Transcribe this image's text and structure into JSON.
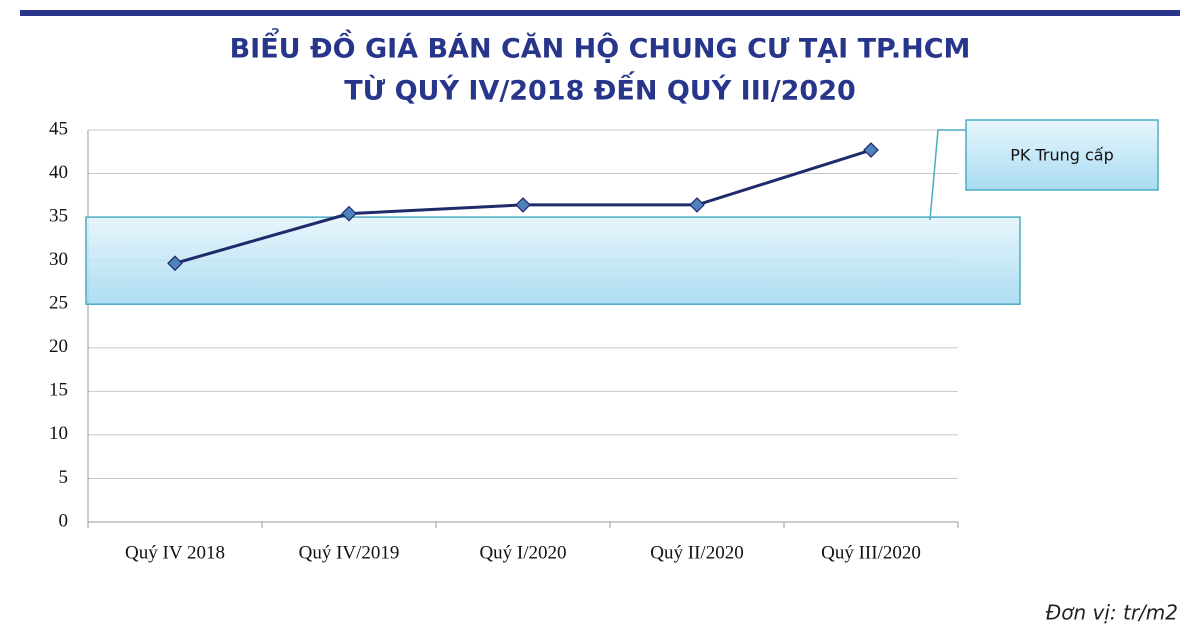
{
  "chart_data": {
    "type": "line",
    "title": [
      "BIỂU ĐỒ GIÁ BÁN CĂN HỘ CHUNG CƯ TẠI TP.HCM",
      "TỪ QUÝ IV/2018 ĐẾN QUÝ III/2020"
    ],
    "categories": [
      "Quý IV 2018",
      "Quý IV/2019",
      "Quý I/2020",
      "Quý II/2020",
      "Quý III/2020"
    ],
    "series": [
      {
        "color": "#1f2a6b",
        "marker_color": "#4f81bd",
        "values": [
          29.7,
          35.4,
          36.4,
          36.4,
          42.7
        ]
      }
    ],
    "ylim": [
      0,
      45
    ],
    "yticks": [
      0,
      5,
      10,
      15,
      20,
      25,
      30,
      35,
      40,
      45
    ],
    "grid": true,
    "annotation": {
      "text": "PK Trung cấp",
      "band": [
        25,
        35
      ]
    },
    "unit_note": "Đơn vị: tr/m2"
  }
}
